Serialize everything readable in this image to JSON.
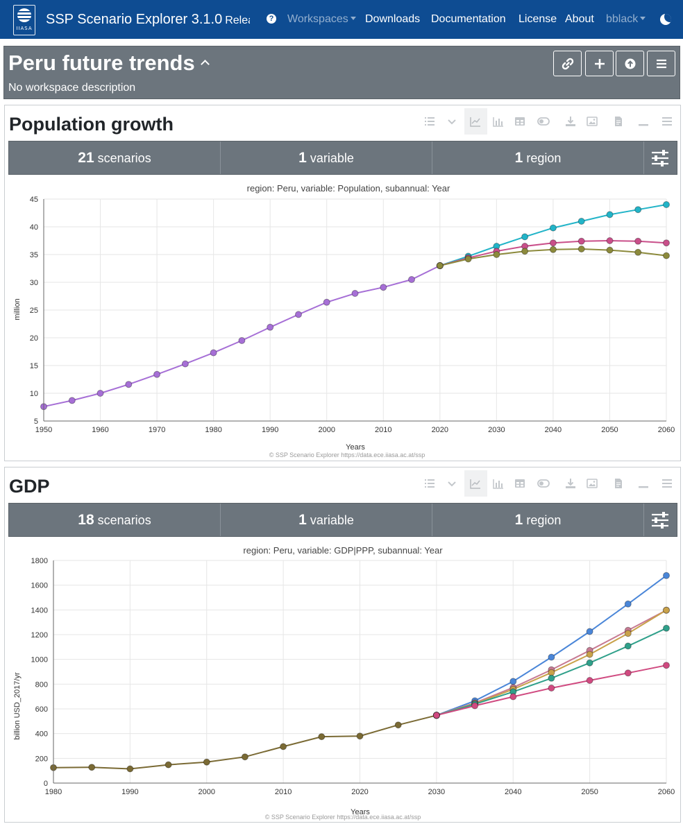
{
  "navbar": {
    "logo_text": "IIASA",
    "brand": "SSP Scenario Explorer 3.1.0",
    "release": "Release",
    "links": {
      "workspaces": "Workspaces",
      "downloads": "Downloads",
      "documentation": "Documentation",
      "license": "License",
      "about": "About",
      "user": "bblack"
    },
    "colors": {
      "navbar": "#0e4c92"
    }
  },
  "workspace": {
    "title": "Peru future trends",
    "description": "No workspace description",
    "buttons": [
      "link-icon",
      "plus-icon",
      "upload-icon",
      "menu-icon"
    ]
  },
  "panels": [
    {
      "title": "Population growth",
      "summary": {
        "scenarios_count": "21",
        "scenarios_label": "scenarios",
        "variables_count": "1",
        "variables_label": "variable",
        "regions_count": "1",
        "regions_label": "region"
      },
      "chart": {
        "title": "region: Peru, variable: Population, subannual: Year",
        "ylabel": "million",
        "xlabel": "Years",
        "copyright": "© SSP Scenario Explorer https://data.ece.iiasa.ac.at/ssp"
      }
    },
    {
      "title": "GDP",
      "summary": {
        "scenarios_count": "18",
        "scenarios_label": "scenarios",
        "variables_count": "1",
        "variables_label": "variable",
        "regions_count": "1",
        "regions_label": "region"
      },
      "chart": {
        "title": "region: Peru, variable: GDP|PPP, subannual: Year",
        "ylabel": "billion USD_2017/yr",
        "xlabel": "Years",
        "copyright": "© SSP Scenario Explorer https://data.ece.iiasa.ac.at/ssp"
      }
    }
  ],
  "chart_data": [
    {
      "type": "line",
      "title": "region: Peru, variable: Population, subannual: Year",
      "xlabel": "Years",
      "ylabel": "million",
      "xlim": [
        1950,
        2060
      ],
      "ylim": [
        5,
        45
      ],
      "x_ticks": [
        1950,
        1960,
        1970,
        1980,
        1990,
        2000,
        2010,
        2020,
        2030,
        2040,
        2050,
        2060
      ],
      "y_ticks": [
        5,
        10,
        15,
        20,
        25,
        30,
        35,
        40,
        45
      ],
      "grid": true,
      "series": [
        {
          "color": "#a66fd6",
          "x": [
            1950,
            1955,
            1960,
            1965,
            1970,
            1975,
            1980,
            1985,
            1990,
            1995,
            2000,
            2005,
            2010,
            2015,
            2020
          ],
          "y": [
            7.6,
            8.7,
            10.0,
            11.6,
            13.4,
            15.3,
            17.3,
            19.5,
            21.9,
            24.2,
            26.4,
            28.0,
            29.1,
            30.5,
            33.0
          ]
        },
        {
          "color": "#22b4c8",
          "x": [
            2020,
            2025,
            2030,
            2035,
            2040,
            2045,
            2050,
            2055,
            2060
          ],
          "y": [
            33.0,
            34.7,
            36.5,
            38.2,
            39.8,
            41.0,
            42.2,
            43.1,
            44.0
          ]
        },
        {
          "color": "#c94f8a",
          "x": [
            2020,
            2025,
            2030,
            2035,
            2040,
            2045,
            2050,
            2055,
            2060
          ],
          "y": [
            33.0,
            34.4,
            35.6,
            36.5,
            37.1,
            37.4,
            37.5,
            37.4,
            37.1
          ]
        },
        {
          "color": "#8c8a3c",
          "x": [
            2020,
            2025,
            2030,
            2035,
            2040,
            2045,
            2050,
            2055,
            2060
          ],
          "y": [
            33.0,
            34.2,
            35.0,
            35.6,
            35.9,
            36.0,
            35.8,
            35.4,
            34.8
          ]
        }
      ]
    },
    {
      "type": "line",
      "title": "region: Peru, variable: GDP|PPP, subannual: Year",
      "xlabel": "Years",
      "ylabel": "billion USD_2017/yr",
      "xlim": [
        1980,
        2060
      ],
      "ylim": [
        0,
        1800
      ],
      "x_ticks": [
        1980,
        1990,
        2000,
        2010,
        2020,
        2030,
        2040,
        2050,
        2060
      ],
      "y_ticks": [
        0,
        200,
        400,
        600,
        800,
        1000,
        1200,
        1400,
        1600,
        1800
      ],
      "grid": true,
      "series": [
        {
          "color": "#7a6a34",
          "x": [
            1980,
            1985,
            1990,
            1995,
            2000,
            2005,
            2010,
            2015,
            2020,
            2025,
            2030
          ],
          "y": [
            125,
            128,
            115,
            148,
            170,
            212,
            295,
            375,
            380,
            470,
            548
          ]
        },
        {
          "color": "#4a86d8",
          "x": [
            2030,
            2035,
            2040,
            2045,
            2050,
            2055,
            2060
          ],
          "y": [
            548,
            665,
            822,
            1018,
            1225,
            1448,
            1678
          ]
        },
        {
          "color": "#c77a92",
          "x": [
            2030,
            2035,
            2040,
            2045,
            2050,
            2055,
            2060
          ],
          "y": [
            548,
            648,
            772,
            916,
            1072,
            1235,
            1398
          ]
        },
        {
          "color": "#c9a24a",
          "x": [
            2030,
            2035,
            2040,
            2045,
            2050,
            2055,
            2060
          ],
          "y": [
            548,
            642,
            758,
            893,
            1040,
            1210,
            1398
          ]
        },
        {
          "color": "#2fa08a",
          "x": [
            2030,
            2035,
            2040,
            2045,
            2050,
            2055,
            2060
          ],
          "y": [
            548,
            638,
            738,
            848,
            972,
            1108,
            1252
          ]
        },
        {
          "color": "#d04a80",
          "x": [
            2030,
            2035,
            2040,
            2045,
            2050,
            2055,
            2060
          ],
          "y": [
            548,
            625,
            698,
            768,
            830,
            890,
            952
          ]
        }
      ]
    }
  ]
}
